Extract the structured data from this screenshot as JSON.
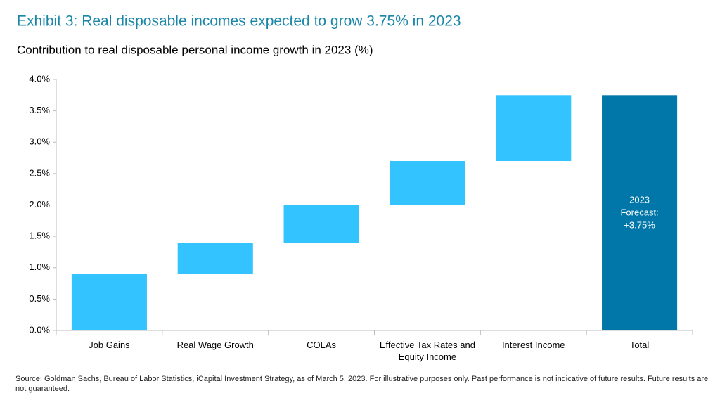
{
  "chart_data": {
    "type": "waterfall",
    "title": "Exhibit 3: Real disposable incomes expected to grow 3.75% in 2023",
    "subtitle": "Contribution to real disposable personal income growth in 2023 (%)",
    "categories": [
      "Job Gains",
      "Real Wage Growth",
      "COLAs",
      "Effective Tax Rates and Equity Income",
      "Interest Income"
    ],
    "values": [
      0.9,
      0.5,
      0.6,
      0.7,
      1.05
    ],
    "color": "#33c3ff",
    "total": {
      "category": "Total",
      "value": 3.75,
      "color": "#0077a8",
      "annotation": [
        "2023",
        "Forecast:",
        "+3.75%"
      ]
    },
    "ylim": [
      0,
      4
    ],
    "yticks": [
      {
        "value": 0,
        "label": "0.0%"
      },
      {
        "value": 0.5,
        "label": "0.5%"
      },
      {
        "value": 1,
        "label": "1.0%"
      },
      {
        "value": 1.5,
        "label": "1.5%"
      },
      {
        "value": 2,
        "label": "2.0%"
      },
      {
        "value": 2.5,
        "label": "2.5%"
      },
      {
        "value": 3,
        "label": "3.0%"
      },
      {
        "value": 3.5,
        "label": "3.5%"
      },
      {
        "value": 4,
        "label": "4.0%"
      }
    ],
    "source": "Source: Goldman Sachs, Bureau of Labor Statistics, iCapital Investment Strategy, as of March 5, 2023. For illustrative purposes only. Past performance is not indicative of future results. Future results are not guaranteed."
  }
}
